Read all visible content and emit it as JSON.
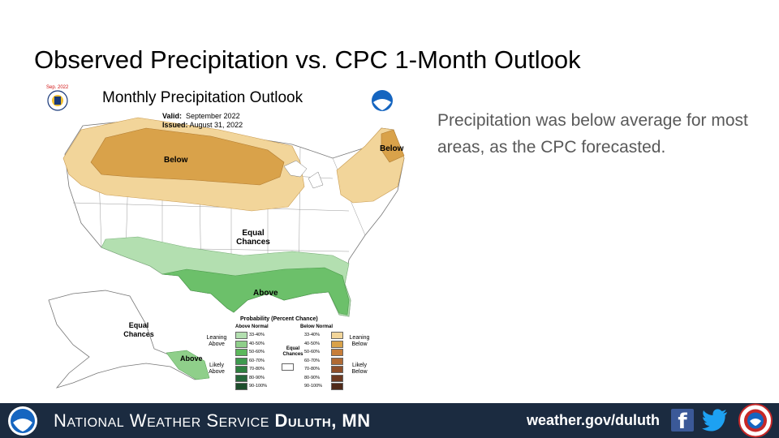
{
  "slide": {
    "title": "Observed Precipitation vs. CPC 1-Month Outlook",
    "summary": "Precipitation was below average for most areas, as the CPC forecasted."
  },
  "map": {
    "title": "Monthly Precipitation Outlook",
    "valid_label": "Valid:",
    "valid_value": "September 2022",
    "issued_label": "Issued:",
    "issued_value": "August 31, 2022",
    "cpc_logo_label": "Sep. 2022",
    "labels": {
      "below_north": "Below",
      "below_northeast": "Below",
      "equal_chances_conus": "Equal Chances",
      "above_south": "Above",
      "equal_chances_alaska": "Equal Chances",
      "above_alaska": "Above"
    },
    "icons": [
      "cpc-logo-icon",
      "noaa-logo-icon"
    ]
  },
  "legend": {
    "title": "Probability (Percent Chance)",
    "above_header": "Above Normal",
    "below_header": "Below Normal",
    "equal_chances": "Equal Chances",
    "leaning_above": "Leaning Above",
    "likely_above": "Likely Above",
    "leaning_below": "Leaning Below",
    "likely_below": "Likely Below",
    "ranges": [
      "33-40%",
      "40-50%",
      "50-60%",
      "60-70%",
      "70-80%",
      "80-90%",
      "90-100%"
    ],
    "above_colors": [
      "#b3dfb0",
      "#8fcf8a",
      "#5cb85c",
      "#3e9a4f",
      "#2e8040",
      "#25663a",
      "#1c4d2b"
    ],
    "below_colors": [
      "#f2d59a",
      "#d9a24a",
      "#c77e3a",
      "#b06a34",
      "#8e4e2a",
      "#6e3a22",
      "#4f2a1a"
    ]
  },
  "footer": {
    "agency_part1_initial": "N",
    "agency_part1_rest": "ATIONAL",
    "agency_part2_initial": "W",
    "agency_part2_rest": "EATHER",
    "agency_part3_initial": "S",
    "agency_part3_rest": "ERVICE",
    "office": "Duluth, MN",
    "url": "weather.gov/duluth",
    "icons": [
      "noaa-logo-icon",
      "facebook-icon",
      "twitter-icon",
      "nws-logo-icon"
    ],
    "background": "#1b2b40"
  }
}
